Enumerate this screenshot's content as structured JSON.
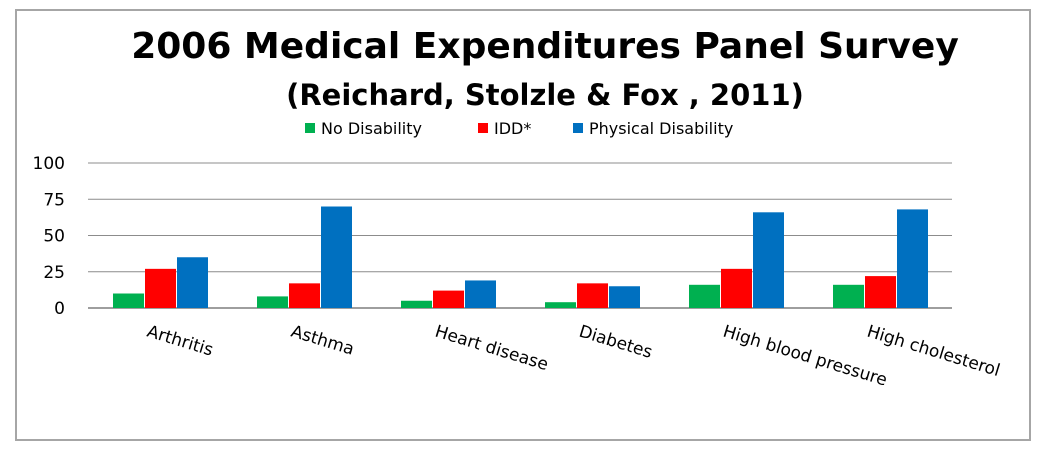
{
  "chart_data": {
    "type": "bar",
    "title": "2006 Medical Expenditures Panel Survey",
    "subtitle": "(Reichard, Stolzle  & Fox , 2011)",
    "categories": [
      "Arthritis",
      "Asthma",
      "Heart disease",
      "Diabetes",
      "High blood pressure",
      "High cholesterol"
    ],
    "series": [
      {
        "name": "No Disability",
        "color": "#00b050",
        "values": [
          10,
          8,
          5,
          4,
          16,
          16
        ]
      },
      {
        "name": "IDD*",
        "color": "#ff0000",
        "values": [
          27,
          17,
          12,
          17,
          27,
          22
        ]
      },
      {
        "name": "Physical Disability",
        "color": "#0070c0",
        "values": [
          35,
          70,
          19,
          15,
          66,
          68
        ]
      }
    ],
    "yticks": [
      "0",
      "25",
      "50",
      "75",
      "100"
    ],
    "ylim": [
      0,
      100
    ],
    "grid": true,
    "legend": "top-center"
  }
}
